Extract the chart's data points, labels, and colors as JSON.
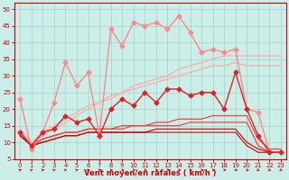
{
  "xlabel": "Vent moyen/en rafales ( km/h )",
  "xlim": [
    -0.5,
    23.5
  ],
  "ylim": [
    5,
    52
  ],
  "yticks": [
    5,
    10,
    15,
    20,
    25,
    30,
    35,
    40,
    45,
    50
  ],
  "xticks": [
    0,
    1,
    2,
    3,
    4,
    5,
    6,
    7,
    8,
    9,
    10,
    11,
    12,
    13,
    14,
    15,
    16,
    17,
    18,
    19,
    20,
    21,
    22,
    23
  ],
  "bg_color": "#cceee8",
  "grid_color": "#aad4ce",
  "axis_color": "#cc0000",
  "lines": [
    {
      "color": "#ff8888",
      "marker": "D",
      "markersize": 2.5,
      "linewidth": 1.0,
      "y": [
        23,
        8,
        13,
        22,
        34,
        27,
        31,
        12,
        44,
        39,
        46,
        45,
        46,
        44,
        48,
        43,
        37,
        38,
        37,
        38,
        20,
        19,
        7,
        7
      ]
    },
    {
      "color": "#ffaaaa",
      "marker": null,
      "linewidth": 0.9,
      "y": [
        14,
        10,
        13,
        15,
        17,
        19,
        21,
        22,
        24,
        25,
        27,
        28,
        29,
        30,
        32,
        33,
        34,
        35,
        36,
        36,
        36,
        36,
        36,
        36
      ]
    },
    {
      "color": "#ffaaaa",
      "marker": null,
      "linewidth": 0.9,
      "y": [
        14,
        10,
        12,
        14,
        16,
        18,
        20,
        22,
        23,
        25,
        26,
        27,
        28,
        29,
        30,
        31,
        32,
        33,
        33,
        34,
        33,
        33,
        33,
        33
      ]
    },
    {
      "color": "#dd2222",
      "marker": "D",
      "markersize": 2.5,
      "linewidth": 1.0,
      "y": [
        13,
        9,
        13,
        14,
        18,
        16,
        17,
        12,
        20,
        23,
        21,
        25,
        22,
        26,
        26,
        24,
        25,
        25,
        20,
        31,
        20,
        12,
        7,
        7
      ]
    },
    {
      "color": "#ee4444",
      "marker": null,
      "linewidth": 0.9,
      "y": [
        13,
        9,
        11,
        12,
        13,
        13,
        14,
        14,
        14,
        15,
        15,
        15,
        16,
        16,
        17,
        17,
        17,
        18,
        18,
        18,
        18,
        11,
        8,
        8
      ]
    },
    {
      "color": "#ee4444",
      "marker": null,
      "linewidth": 0.9,
      "y": [
        13,
        9,
        11,
        12,
        13,
        13,
        14,
        14,
        14,
        14,
        15,
        15,
        15,
        15,
        15,
        16,
        16,
        16,
        16,
        16,
        16,
        9,
        7,
        7
      ]
    },
    {
      "color": "#cc0000",
      "marker": null,
      "linewidth": 0.8,
      "y": [
        12,
        9,
        10,
        11,
        12,
        12,
        13,
        13,
        13,
        13,
        13,
        13,
        14,
        14,
        14,
        14,
        14,
        14,
        14,
        14,
        10,
        8,
        7,
        7
      ]
    },
    {
      "color": "#cc0000",
      "marker": null,
      "linewidth": 0.8,
      "y": [
        12,
        9,
        10,
        11,
        12,
        12,
        13,
        13,
        13,
        13,
        13,
        13,
        13,
        13,
        13,
        13,
        13,
        13,
        13,
        13,
        9,
        7,
        7,
        7
      ]
    }
  ],
  "wind_angles": [
    45,
    45,
    45,
    45,
    45,
    45,
    45,
    60,
    90,
    90,
    90,
    90,
    90,
    90,
    90,
    90,
    90,
    90,
    90,
    90,
    90,
    135,
    135,
    135
  ]
}
